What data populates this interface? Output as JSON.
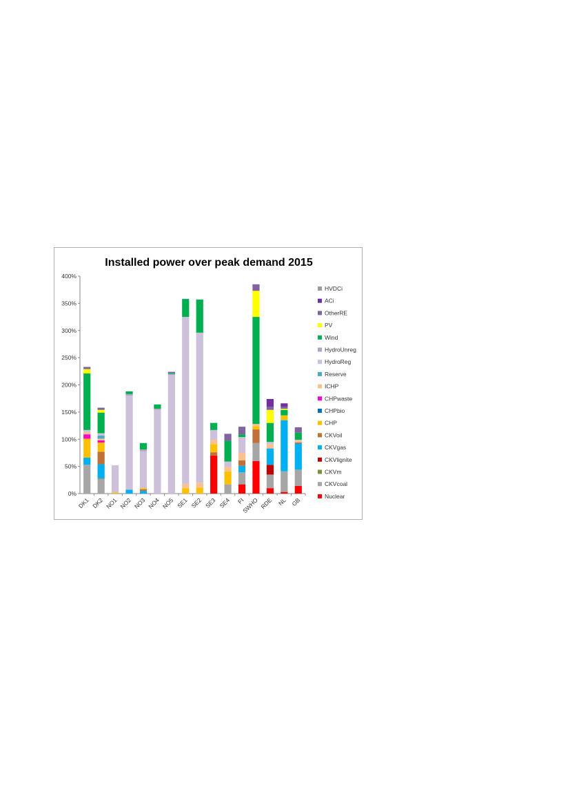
{
  "chart_data": {
    "type": "bar",
    "stacked": true,
    "title": "Installed power over peak demand 2015",
    "xlabel": "",
    "ylabel": "",
    "ylim": [
      0,
      400
    ],
    "yticks": [
      "0%",
      "50%",
      "100%",
      "150%",
      "200%",
      "250%",
      "300%",
      "350%",
      "400%"
    ],
    "grid": false,
    "legend_position": "right",
    "categories": [
      "DK1",
      "DK2",
      "NO1",
      "NO2",
      "NO3",
      "NO4",
      "NO5",
      "SE1",
      "SE2",
      "SE3",
      "SE4",
      "FI",
      "SWHO",
      "RDE",
      "NL",
      "GB"
    ],
    "series": [
      {
        "name": "Nuclear",
        "color": "#ff0000",
        "values": [
          0,
          0,
          0,
          0,
          0,
          0,
          0,
          0,
          0,
          70,
          0,
          17,
          60,
          10,
          3,
          14
        ]
      },
      {
        "name": "CKVcoal",
        "color": "#a6a6a6",
        "values": [
          53,
          27,
          0,
          0,
          0,
          0,
          0,
          0,
          0,
          0,
          17,
          22,
          33,
          25,
          38,
          30
        ]
      },
      {
        "name": "CKVm",
        "color": "#77933c",
        "values": [
          0,
          1,
          0,
          0,
          0,
          0,
          0,
          0,
          0,
          0,
          0,
          0,
          0,
          0,
          0,
          0
        ]
      },
      {
        "name": "CKVlignite",
        "color": "#c00000",
        "values": [
          0,
          0,
          0,
          0,
          0,
          0,
          0,
          0,
          0,
          0,
          0,
          0,
          0,
          18,
          0,
          0
        ]
      },
      {
        "name": "CKVgas",
        "color": "#00b0f0",
        "values": [
          13,
          26,
          0,
          7,
          5,
          0,
          0,
          0,
          0,
          0,
          0,
          12,
          0,
          30,
          94,
          48
        ]
      },
      {
        "name": "CKVoil",
        "color": "#c0713a",
        "values": [
          0,
          23,
          0,
          0,
          3,
          0,
          0,
          0,
          0,
          6,
          0,
          10,
          25,
          0,
          0,
          2
        ]
      },
      {
        "name": "CHP",
        "color": "#ffc000",
        "values": [
          35,
          17,
          2,
          0,
          2,
          0,
          0,
          10,
          11,
          15,
          24,
          0,
          6,
          0,
          9,
          0
        ]
      },
      {
        "name": "CHPbio",
        "color": "#0070c0",
        "values": [
          0,
          0,
          0,
          0,
          0,
          0,
          0,
          0,
          0,
          0,
          0,
          0,
          0,
          0,
          0,
          0
        ]
      },
      {
        "name": "CHPwaste",
        "color": "#ff00cc",
        "values": [
          8,
          4,
          0,
          0,
          0,
          0,
          0,
          0,
          0,
          0,
          0,
          0,
          0,
          0,
          0,
          0
        ]
      },
      {
        "name": "ICHP",
        "color": "#fac090",
        "values": [
          4,
          3,
          0,
          0,
          0,
          0,
          0,
          8,
          9,
          8,
          8,
          14,
          4,
          8,
          0,
          4
        ]
      },
      {
        "name": "Reserve",
        "color": "#4bacc6",
        "values": [
          0,
          6,
          0,
          0,
          0,
          0,
          0,
          0,
          0,
          0,
          0,
          0,
          0,
          0,
          0,
          0
        ]
      },
      {
        "name": "HydroReg",
        "color": "#ccc0da",
        "values": [
          4,
          4,
          50,
          173,
          68,
          154,
          218,
          307,
          276,
          18,
          10,
          29,
          0,
          4,
          0,
          1
        ]
      },
      {
        "name": "HydroUnreg",
        "color": "#b3a2c7",
        "values": [
          0,
          0,
          0,
          3,
          3,
          2,
          2,
          0,
          0,
          0,
          0,
          0,
          0,
          0,
          0,
          0
        ]
      },
      {
        "name": "Wind",
        "color": "#00b050",
        "values": [
          104,
          38,
          0,
          5,
          12,
          8,
          2,
          33,
          61,
          13,
          38,
          5,
          197,
          35,
          10,
          13
        ]
      },
      {
        "name": "PV",
        "color": "#ffff00",
        "values": [
          8,
          5,
          0,
          0,
          0,
          0,
          0,
          0,
          0,
          0,
          0,
          0,
          48,
          24,
          2,
          0
        ]
      },
      {
        "name": "OtherRE",
        "color": "#8064a2",
        "values": [
          4,
          4,
          0,
          0,
          0,
          0,
          2,
          0,
          0,
          0,
          13,
          14,
          12,
          6,
          4,
          10
        ]
      },
      {
        "name": "ACi",
        "color": "#7030a0",
        "values": [
          0,
          0,
          0,
          0,
          0,
          0,
          0,
          0,
          0,
          0,
          0,
          0,
          0,
          14,
          6,
          0
        ]
      },
      {
        "name": "HVDCi",
        "color": "#9c9c9c",
        "values": [
          0,
          0,
          0,
          0,
          0,
          0,
          0,
          0,
          0,
          0,
          0,
          0,
          0,
          0,
          0,
          0
        ]
      }
    ]
  }
}
